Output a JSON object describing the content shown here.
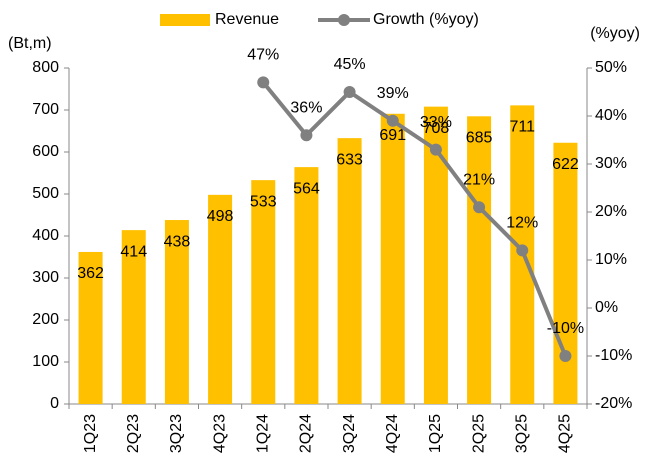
{
  "chart_data": {
    "type": "bar",
    "categories": [
      "1Q23",
      "2Q23",
      "3Q23",
      "4Q23",
      "1Q24",
      "2Q24",
      "3Q24",
      "4Q24",
      "1Q25",
      "2Q25",
      "3Q25",
      "4Q25"
    ],
    "series": [
      {
        "name": "Revenue",
        "type": "bar",
        "color": "#FFC000",
        "values": [
          362,
          414,
          438,
          498,
          533,
          564,
          633,
          691,
          708,
          685,
          711,
          622
        ]
      },
      {
        "name": "Growth (%yoy)",
        "type": "line",
        "axis": "y2",
        "color": "#808080",
        "values": [
          null,
          null,
          null,
          null,
          47,
          36,
          45,
          39,
          33,
          21,
          12,
          -10
        ],
        "value_labels": [
          null,
          null,
          null,
          null,
          "47%",
          "36%",
          "45%",
          "39%",
          "33%",
          "21%",
          "12%",
          "-10%"
        ]
      }
    ],
    "y_label": "(Bt,m)",
    "y2_label": "(%yoy)",
    "ylim": [
      0,
      800
    ],
    "yticks": [
      0,
      100,
      200,
      300,
      400,
      500,
      600,
      700,
      800
    ],
    "y2lim": [
      -20,
      50
    ],
    "y2ticks": [
      {
        "value": -20,
        "label": "-20%"
      },
      {
        "value": -10,
        "label": "-10%"
      },
      {
        "value": 0,
        "label": "0%"
      },
      {
        "value": 10,
        "label": "10%"
      },
      {
        "value": 20,
        "label": "20%"
      },
      {
        "value": 30,
        "label": "30%"
      },
      {
        "value": 40,
        "label": "40%"
      },
      {
        "value": 50,
        "label": "50%"
      }
    ],
    "legend": "top"
  }
}
